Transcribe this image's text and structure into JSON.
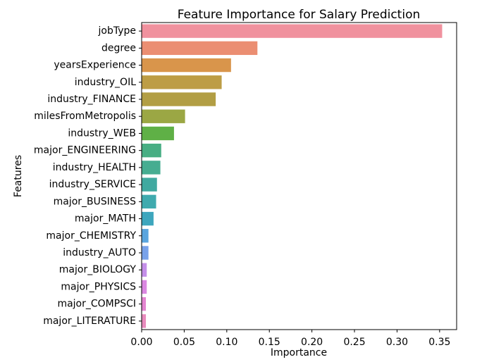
{
  "chart_data": {
    "type": "bar",
    "orientation": "horizontal",
    "title": "Feature Importance for Salary Prediction",
    "xlabel": "Importance",
    "ylabel": "Features",
    "xlim": [
      0,
      0.37
    ],
    "xticks": [
      "0.00",
      "0.05",
      "0.10",
      "0.15",
      "0.20",
      "0.25",
      "0.30",
      "0.35"
    ],
    "grid": false,
    "categories": [
      "jobType",
      "degree",
      "yearsExperience",
      "industry_OIL",
      "industry_FINANCE",
      "milesFromMetropolis",
      "industry_WEB",
      "major_ENGINEERING",
      "industry_HEALTH",
      "industry_SERVICE",
      "major_BUSINESS",
      "major_MATH",
      "major_CHEMISTRY",
      "industry_AUTO",
      "major_BIOLOGY",
      "major_PHYSICS",
      "major_COMPSCI",
      "major_LITERATURE"
    ],
    "values": [
      0.353,
      0.136,
      0.105,
      0.094,
      0.087,
      0.051,
      0.038,
      0.023,
      0.022,
      0.018,
      0.017,
      0.014,
      0.008,
      0.008,
      0.006,
      0.006,
      0.005,
      0.005
    ],
    "colors": [
      "#f0919e",
      "#eb8e72",
      "#d9954b",
      "#bd9d45",
      "#b29e44",
      "#9ba744",
      "#5fb046",
      "#48ae83",
      "#46ad91",
      "#40a9a0",
      "#3faaae",
      "#3ea6bd",
      "#5aa5de",
      "#78a2ea",
      "#c48fe9",
      "#da88e1",
      "#e485d1",
      "#e88bbd"
    ]
  }
}
